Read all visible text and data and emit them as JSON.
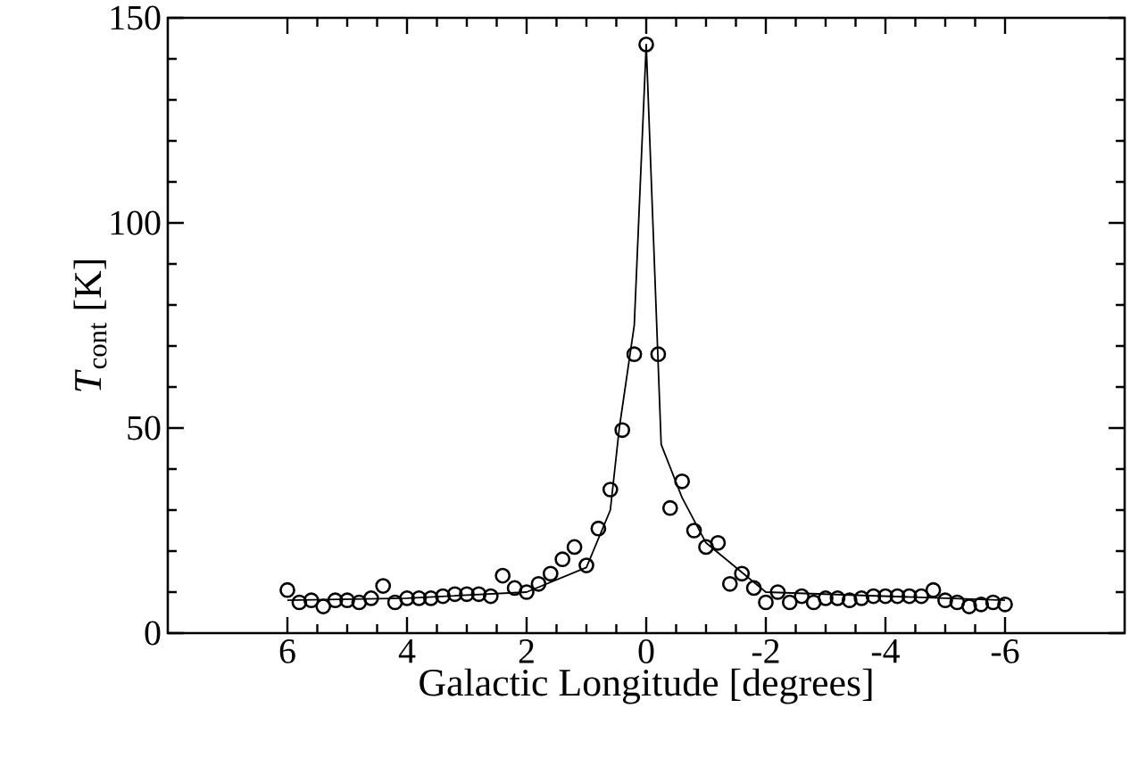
{
  "chart_data": {
    "type": "scatter",
    "xlabel": "Galactic Longitude [degrees]",
    "ylabel": "*T*$_{cont}$ [K]",
    "xlim": [
      8,
      -8
    ],
    "ylim": [
      0,
      150
    ],
    "xticks": [
      6,
      4,
      2,
      0,
      -2,
      -4,
      -6
    ],
    "yticks": [
      0,
      50,
      100,
      150
    ],
    "grid": false,
    "series": [
      {
        "marker": "circle",
        "color": "#000000",
        "x": [
          6.0,
          5.8,
          5.6,
          5.4,
          5.2,
          5.0,
          4.8,
          4.6,
          4.4,
          4.2,
          4.0,
          3.8,
          3.6,
          3.4,
          3.2,
          3.0,
          2.8,
          2.6,
          2.4,
          2.2,
          2.0,
          1.8,
          1.6,
          1.4,
          1.2,
          1.0,
          0.8,
          0.6,
          0.4,
          0.2,
          0.0,
          -0.2,
          -0.4,
          -0.6,
          -0.8,
          -1.0,
          -1.2,
          -1.4,
          -1.6,
          -1.8,
          -2.0,
          -2.2,
          -2.4,
          -2.6,
          -2.8,
          -3.0,
          -3.2,
          -3.4,
          -3.6,
          -3.8,
          -4.0,
          -4.2,
          -4.4,
          -4.6,
          -4.8,
          -5.0,
          -5.2,
          -5.4,
          -5.6,
          -5.8,
          -6.0
        ],
        "values": [
          10.5,
          7.5,
          8,
          6.5,
          8,
          8,
          7.5,
          8.5,
          11.5,
          7.5,
          8.5,
          8.5,
          8.5,
          9,
          9.5,
          9.5,
          9.5,
          9,
          14,
          11,
          10,
          12,
          14.5,
          18,
          21,
          16.5,
          25.5,
          35,
          49.5,
          68,
          143.5,
          68,
          30.5,
          37,
          25,
          21,
          22,
          12,
          14.5,
          11,
          7.5,
          10,
          7.5,
          9,
          7.5,
          8.5,
          8.5,
          8,
          8.5,
          9,
          9,
          9,
          9,
          9,
          10.5,
          8,
          7.5,
          6.5,
          7,
          7.5,
          7
        ]
      },
      {
        "type": "line",
        "marker": "none",
        "line_style": "solid",
        "color": "#000000",
        "x": [
          6,
          4,
          2,
          1,
          0.6,
          0.45,
          0.2,
          0,
          -0.25,
          -0.6,
          -1,
          -2,
          -4,
          -6
        ],
        "values": [
          8,
          8.5,
          10,
          16,
          30,
          50,
          75,
          143.5,
          46,
          33,
          22,
          10,
          9,
          8
        ]
      }
    ]
  }
}
